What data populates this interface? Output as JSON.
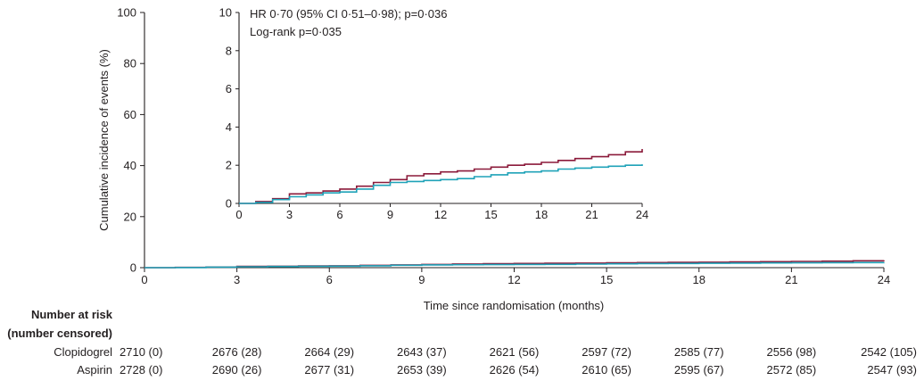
{
  "chart_data": [
    {
      "type": "line",
      "subtype": "step",
      "panel": "main",
      "xlabel": "Time since randomisation (months)",
      "ylabel": "Cumulative incidence of events (%)",
      "xlim": [
        0,
        24
      ],
      "ylim": [
        0,
        100
      ],
      "x_ticks": [
        "0",
        "3",
        "6",
        "9",
        "12",
        "15",
        "18",
        "21",
        "24"
      ],
      "y_ticks": [
        "0",
        "20",
        "40",
        "60",
        "80",
        "100"
      ],
      "series": [
        {
          "color": "#8b1a3a",
          "x": [
            0,
            1,
            2,
            3,
            4,
            5,
            6,
            7,
            8,
            9,
            10,
            11,
            12,
            13,
            14,
            15,
            16,
            17,
            18,
            19,
            20,
            21,
            22,
            23,
            24
          ],
          "y": [
            0,
            0.1,
            0.25,
            0.5,
            0.55,
            0.65,
            0.75,
            0.9,
            1.1,
            1.25,
            1.45,
            1.55,
            1.65,
            1.7,
            1.8,
            1.9,
            2.0,
            2.05,
            2.15,
            2.25,
            2.35,
            2.45,
            2.55,
            2.7,
            2.85
          ]
        },
        {
          "color": "#1fa2b8",
          "x": [
            0,
            1,
            2,
            3,
            4,
            5,
            6,
            7,
            8,
            9,
            10,
            11,
            12,
            13,
            14,
            15,
            16,
            17,
            18,
            19,
            20,
            21,
            22,
            23,
            24
          ],
          "y": [
            0,
            0.05,
            0.2,
            0.35,
            0.45,
            0.55,
            0.6,
            0.75,
            0.95,
            1.1,
            1.15,
            1.2,
            1.25,
            1.3,
            1.4,
            1.5,
            1.6,
            1.65,
            1.7,
            1.8,
            1.85,
            1.9,
            1.95,
            2.0,
            2.05
          ]
        }
      ]
    },
    {
      "type": "line",
      "subtype": "step",
      "panel": "inset",
      "xlim": [
        0,
        24
      ],
      "ylim": [
        0,
        10
      ],
      "x_ticks": [
        "0",
        "3",
        "6",
        "9",
        "12",
        "15",
        "18",
        "21",
        "24"
      ],
      "y_ticks": [
        "0",
        "2",
        "4",
        "6",
        "8",
        "10"
      ],
      "annotations": [
        "HR 0·70 (95% CI 0·51–0·98); p=0·036",
        "Log-rank p=0·035"
      ],
      "series": [
        {
          "color": "#8b1a3a",
          "x": [
            0,
            1,
            2,
            3,
            4,
            5,
            6,
            7,
            8,
            9,
            10,
            11,
            12,
            13,
            14,
            15,
            16,
            17,
            18,
            19,
            20,
            21,
            22,
            23,
            24
          ],
          "y": [
            0,
            0.1,
            0.25,
            0.5,
            0.55,
            0.65,
            0.75,
            0.9,
            1.1,
            1.25,
            1.45,
            1.55,
            1.65,
            1.7,
            1.8,
            1.9,
            2.0,
            2.05,
            2.15,
            2.25,
            2.35,
            2.45,
            2.55,
            2.7,
            2.85
          ]
        },
        {
          "color": "#1fa2b8",
          "x": [
            0,
            1,
            2,
            3,
            4,
            5,
            6,
            7,
            8,
            9,
            10,
            11,
            12,
            13,
            14,
            15,
            16,
            17,
            18,
            19,
            20,
            21,
            22,
            23,
            24
          ],
          "y": [
            0,
            0.05,
            0.2,
            0.35,
            0.45,
            0.55,
            0.6,
            0.75,
            0.95,
            1.1,
            1.15,
            1.2,
            1.25,
            1.3,
            1.4,
            1.5,
            1.6,
            1.65,
            1.7,
            1.8,
            1.85,
            1.9,
            1.95,
            2.0,
            2.05
          ]
        }
      ]
    }
  ],
  "risk_table": {
    "title_line1": "Number at risk",
    "title_line2": "(number censored)",
    "rows": [
      {
        "label": "Clopidogrel",
        "values": [
          "2710 (0)",
          "2676 (28)",
          "2664 (29)",
          "2643 (37)",
          "2621 (56)",
          "2597 (72)",
          "2585 (77)",
          "2556 (98)",
          "2542 (105)"
        ]
      },
      {
        "label": "Aspirin",
        "values": [
          "2728 (0)",
          "2690 (26)",
          "2677 (31)",
          "2653 (39)",
          "2626 (54)",
          "2610 (65)",
          "2595 (67)",
          "2572 (85)",
          "2547 (93)"
        ]
      }
    ]
  }
}
